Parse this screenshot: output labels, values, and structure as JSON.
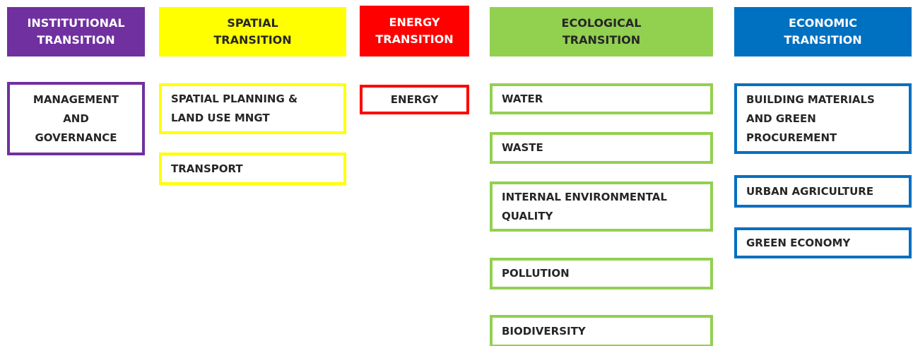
{
  "columns": [
    {
      "header": [
        "INSTITUTIONAL",
        "TRANSITION"
      ],
      "items": [
        [
          "MANAGEMENT",
          "AND",
          "GOVERNANCE"
        ]
      ]
    },
    {
      "header": [
        "SPATIAL",
        "TRANSITION"
      ],
      "items": [
        [
          "SPATIAL PLANNING &",
          "LAND USE MNGT"
        ],
        [
          "TRANSPORT"
        ]
      ]
    },
    {
      "header": [
        "ENERGY",
        "TRANSITION"
      ],
      "items": [
        [
          "ENERGY"
        ]
      ]
    },
    {
      "header": [
        "ECOLOGICAL",
        "TRANSITION"
      ],
      "items": [
        [
          "WATER"
        ],
        [
          "WASTE"
        ],
        [
          "INTERNAL ENVIRONMENTAL",
          "QUALITY"
        ],
        [
          "POLLUTION"
        ],
        [
          "BIODIVERSITY"
        ]
      ]
    },
    {
      "header": [
        "ECONOMIC",
        "TRANSITION"
      ],
      "items": [
        [
          "BUILDING MATERIALS",
          "AND GREEN",
          "PROCUREMENT"
        ],
        [
          "URBAN AGRICULTURE"
        ],
        [
          "GREEN ECONOMY"
        ]
      ]
    }
  ]
}
